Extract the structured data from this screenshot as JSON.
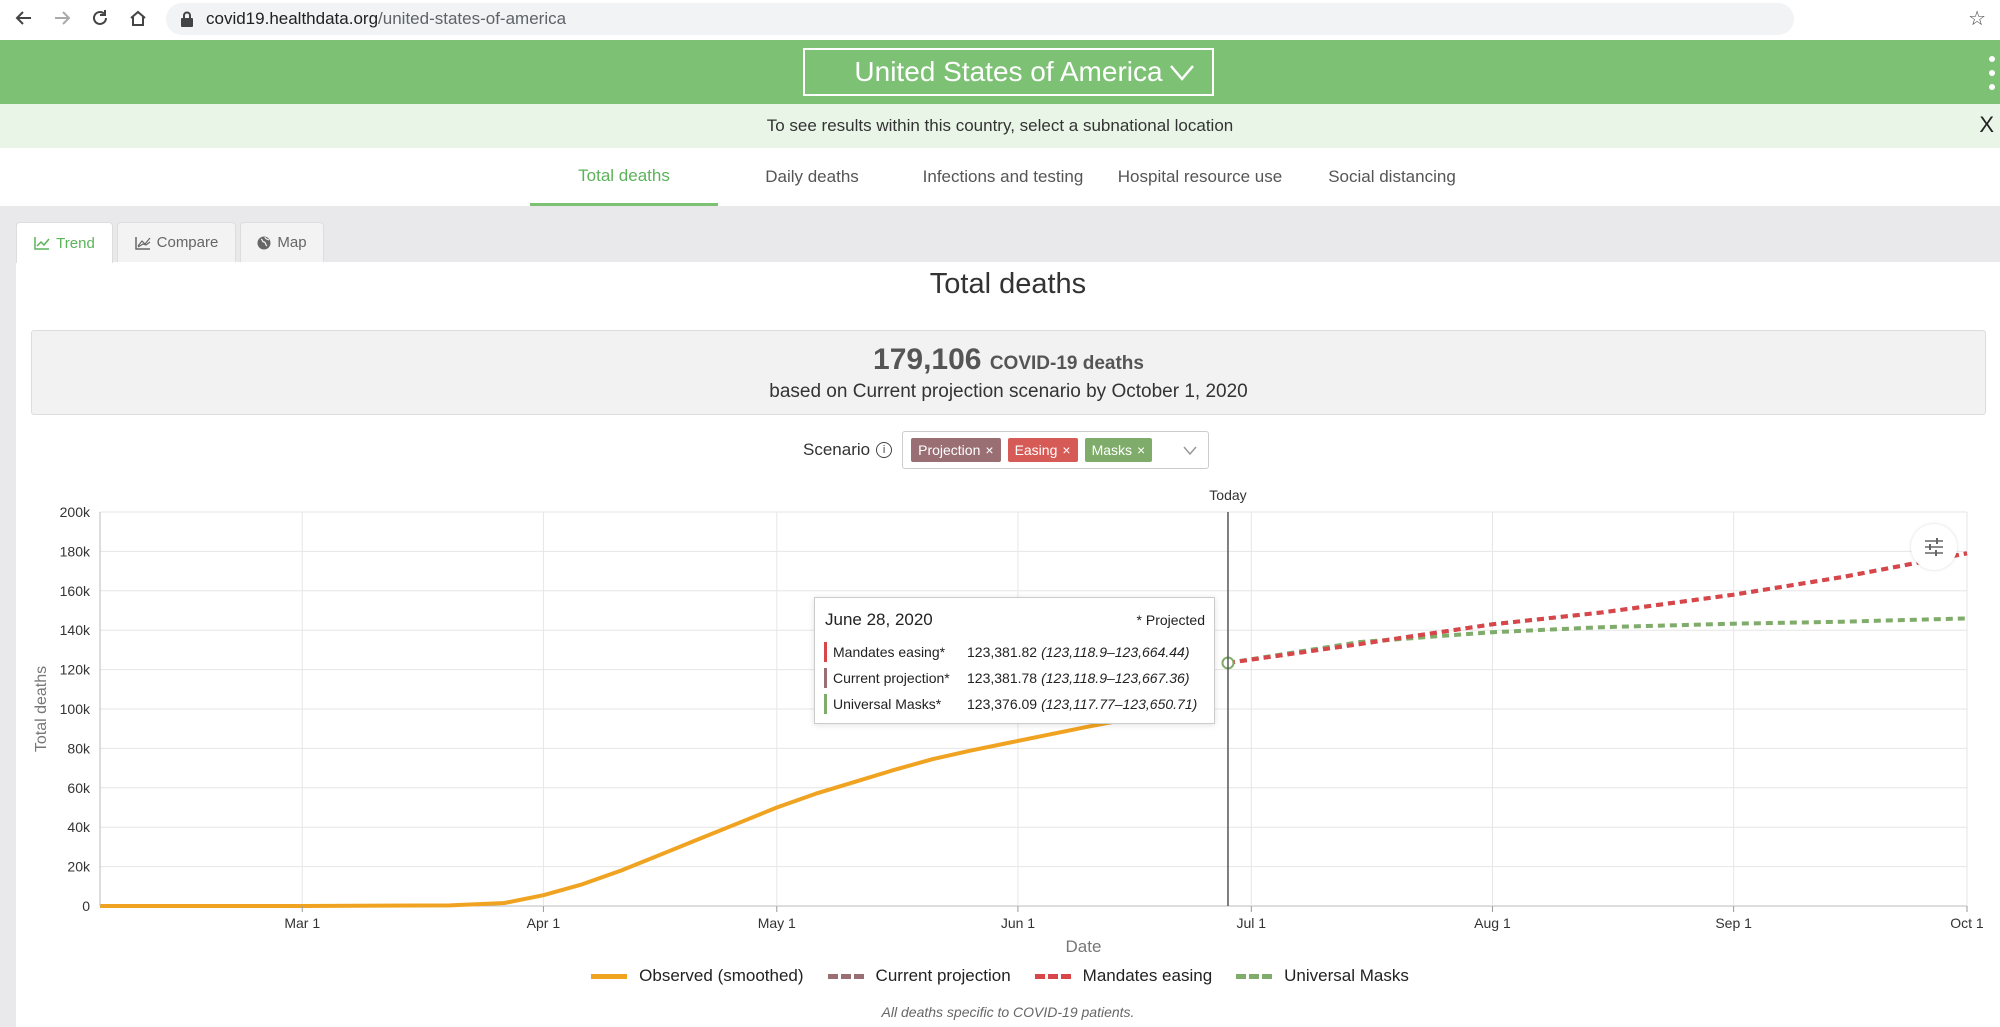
{
  "browser": {
    "url_domain": "covid19.healthdata.org",
    "url_path": "/united-states-of-america"
  },
  "header": {
    "location": "United States of America"
  },
  "notice": {
    "text": "To see results within this country, select a subnational location",
    "close": "X"
  },
  "metric_tabs": [
    {
      "label": "Total deaths",
      "active": true
    },
    {
      "label": "Daily deaths",
      "active": false
    },
    {
      "label": "Infections and testing",
      "active": false
    },
    {
      "label": "Hospital resource use",
      "active": false
    },
    {
      "label": "Social distancing",
      "active": false
    }
  ],
  "view_tabs": [
    {
      "label": "Trend",
      "icon": "trend-icon",
      "active": true
    },
    {
      "label": "Compare",
      "icon": "compare-icon",
      "active": false
    },
    {
      "label": "Map",
      "icon": "globe-icon",
      "active": false
    }
  ],
  "chart_title": "Total deaths",
  "summary": {
    "value": "179,106",
    "unit": "COVID-19 deaths",
    "subtitle": "based on Current projection scenario by October 1, 2020"
  },
  "scenario": {
    "label": "Scenario",
    "chips": [
      {
        "label": "Projection",
        "color": "#9a6f74"
      },
      {
        "label": "Easing",
        "color": "#d65a55"
      },
      {
        "label": "Masks",
        "color": "#7fac6a"
      }
    ]
  },
  "tooltip": {
    "date": "June 28, 2020",
    "projected_label": "* Projected",
    "rows": [
      {
        "name": "Mandates easing*",
        "value": "123,381.82",
        "range": "(123,118.9–123,664.44)",
        "color": "#d9464a"
      },
      {
        "name": "Current projection*",
        "value": "123,381.78",
        "range": "(123,118.9–123,667.36)",
        "color": "#9a6f74"
      },
      {
        "name": "Universal Masks*",
        "value": "123,376.09",
        "range": "(123,117.77–123,650.71)",
        "color": "#7fac6a"
      }
    ]
  },
  "chart_data": {
    "type": "line",
    "xlabel": "Date",
    "ylabel": "Total deaths",
    "x_ticks": [
      "Mar 1",
      "Apr 1",
      "May 1",
      "Jun 1",
      "Jul 1",
      "Aug 1",
      "Sep 1",
      "Oct 1"
    ],
    "y_ticks": [
      "0",
      "20k",
      "40k",
      "60k",
      "80k",
      "100k",
      "120k",
      "140k",
      "160k",
      "180k",
      "200k"
    ],
    "xlim": [
      "2020-02-04",
      "2020-10-01"
    ],
    "ylim": [
      0,
      200000
    ],
    "today_label": "Today",
    "today_date": "2020-06-28",
    "grid": true,
    "legend_position": "bottom",
    "series": [
      {
        "name": "Observed (smoothed)",
        "style": "solid",
        "color": "#f0a321",
        "points": [
          [
            "2020-02-04",
            0
          ],
          [
            "2020-03-01",
            0
          ],
          [
            "2020-03-20",
            300
          ],
          [
            "2020-03-27",
            1500
          ],
          [
            "2020-04-01",
            5500
          ],
          [
            "2020-04-06",
            11000
          ],
          [
            "2020-04-11",
            18000
          ],
          [
            "2020-04-16",
            26000
          ],
          [
            "2020-04-21",
            34000
          ],
          [
            "2020-04-26",
            42000
          ],
          [
            "2020-05-01",
            50000
          ],
          [
            "2020-05-06",
            57000
          ],
          [
            "2020-05-11",
            63000
          ],
          [
            "2020-05-16",
            69000
          ],
          [
            "2020-05-21",
            74500
          ],
          [
            "2020-05-26",
            79000
          ],
          [
            "2020-05-31",
            83000
          ],
          [
            "2020-06-05",
            87000
          ],
          [
            "2020-06-10",
            91000
          ],
          [
            "2020-06-14",
            94000
          ]
        ]
      },
      {
        "name": "Current projection",
        "style": "dashed",
        "color": "#9a6f74",
        "points": [
          [
            "2020-06-28",
            123382
          ],
          [
            "2020-07-15",
            133000
          ],
          [
            "2020-08-01",
            143000
          ],
          [
            "2020-08-15",
            149000
          ],
          [
            "2020-09-01",
            158000
          ],
          [
            "2020-09-15",
            167000
          ],
          [
            "2020-10-01",
            179106
          ]
        ]
      },
      {
        "name": "Mandates easing",
        "style": "dashed",
        "color": "#d9464a",
        "points": [
          [
            "2020-06-28",
            123382
          ],
          [
            "2020-07-15",
            133000
          ],
          [
            "2020-08-01",
            143000
          ],
          [
            "2020-08-15",
            149000
          ],
          [
            "2020-09-01",
            158000
          ],
          [
            "2020-09-15",
            167000
          ],
          [
            "2020-10-01",
            179000
          ]
        ]
      },
      {
        "name": "Universal Masks",
        "style": "dashed",
        "color": "#7fac6a",
        "points": [
          [
            "2020-06-28",
            123376
          ],
          [
            "2020-07-15",
            134000
          ],
          [
            "2020-08-01",
            139000
          ],
          [
            "2020-08-15",
            141500
          ],
          [
            "2020-09-01",
            143300
          ],
          [
            "2020-09-15",
            144300
          ],
          [
            "2020-10-01",
            146000
          ]
        ]
      }
    ]
  },
  "footnote": "All deaths specific to COVID-19 patients."
}
